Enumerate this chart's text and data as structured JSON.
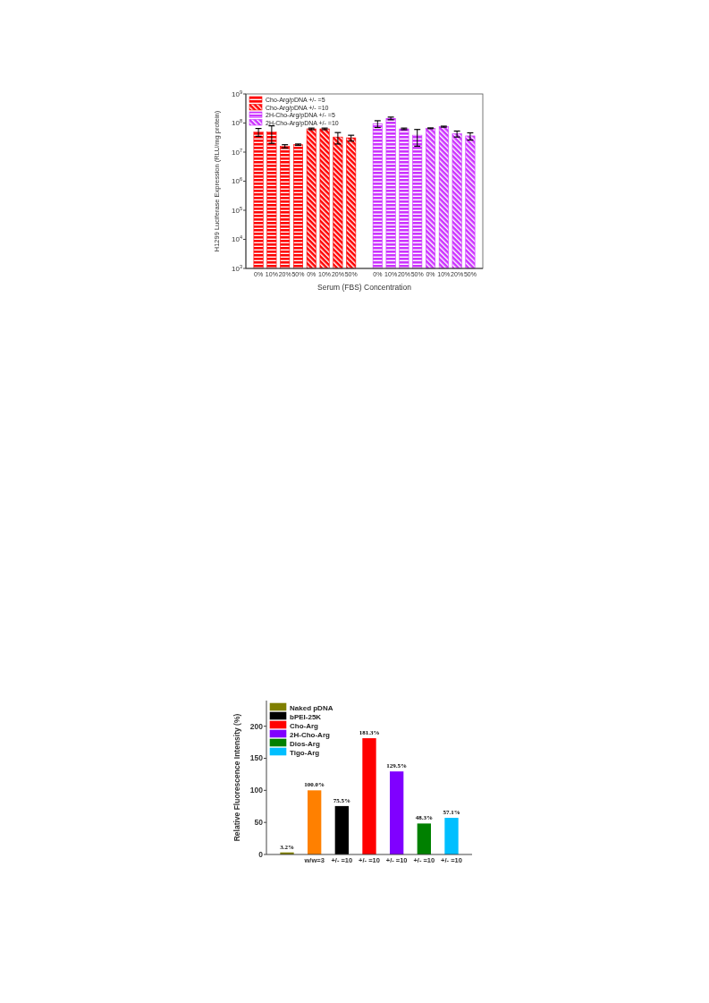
{
  "chart_data": [
    {
      "type": "bar",
      "xlabel": "Serum (FBS) Concentration",
      "ylabel": "H1299 Luciferase Expression (RLU/mg protein)",
      "log": true,
      "ylim": [
        1000,
        1000000000
      ],
      "yticks": [
        {
          "value": 1000,
          "label": "10$^{3}$"
        },
        {
          "value": 10000,
          "label": "10$^{4}$"
        },
        {
          "value": 100000,
          "label": "10$^{5}$"
        },
        {
          "value": 1000000,
          "label": "10$^{6}$"
        },
        {
          "value": 10000000,
          "label": "10$^{7}$"
        },
        {
          "value": 100000000,
          "label": "10$^{8}$"
        },
        {
          "value": 1000000000,
          "label": "10$^{9}$"
        }
      ],
      "grid": false,
      "legend": "top left",
      "categories": [
        "0%",
        "10%",
        "20%",
        "50%",
        "0%",
        "10%",
        "20%",
        "50%",
        null,
        "0%",
        "10%",
        "20%",
        "50%",
        "0%",
        "10%",
        "20%",
        "50%"
      ],
      "series": [
        {
          "name": "Cho-Arg/pDNA +/- =5",
          "color": "#ff0000",
          "values": [
            50000000,
            50000000,
            16000000,
            18000000,
            null,
            null,
            null,
            null,
            null,
            null,
            null,
            null,
            null,
            null,
            null,
            null,
            null
          ],
          "errors": [
            15000000,
            30000000,
            2000000,
            1000000,
            null,
            null,
            null,
            null,
            null,
            null,
            null,
            null,
            null,
            null,
            null,
            null,
            null
          ]
        },
        {
          "name": "Cho-Arg/pDNA +/- =10",
          "color": "#ff0000",
          "values": [
            null,
            null,
            null,
            null,
            63000000,
            63000000,
            33000000,
            31000000,
            null,
            null,
            null,
            null,
            null,
            null,
            null,
            null,
            null
          ],
          "errors": [
            null,
            null,
            null,
            null,
            4000000,
            4000000,
            14000000,
            7000000,
            null,
            null,
            null,
            null,
            null,
            null,
            null,
            null,
            null
          ]
        },
        {
          "name": "2H-Cho-Arg/pDNA +/- =5",
          "color": "#cc33ff",
          "values": [
            null,
            null,
            null,
            null,
            null,
            null,
            null,
            null,
            null,
            95000000,
            145000000,
            63000000,
            38000000,
            null,
            null,
            null,
            null
          ],
          "errors": [
            null,
            null,
            null,
            null,
            null,
            null,
            null,
            null,
            null,
            25000000,
            15000000,
            4000000,
            22000000,
            null,
            null,
            null,
            null
          ]
        },
        {
          "name": "2H-Cho-Arg/pDNA +/- =10",
          "color": "#cc33ff",
          "values": [
            null,
            null,
            null,
            null,
            null,
            null,
            null,
            null,
            null,
            null,
            null,
            null,
            null,
            66000000,
            75000000,
            43000000,
            36000000
          ],
          "errors": [
            null,
            null,
            null,
            null,
            null,
            null,
            null,
            null,
            null,
            null,
            null,
            null,
            null,
            2000000,
            3000000,
            10000000,
            10000000
          ]
        }
      ]
    },
    {
      "type": "bar",
      "ylabel": "Relative Fluorescence Intensity (%)",
      "ylim": [
        0,
        240
      ],
      "yticks": [
        0,
        50,
        100,
        150,
        200
      ],
      "grid": false,
      "legend": "top left",
      "categories": [
        null,
        "w/w=3",
        "+/- =10",
        "+/- =10",
        "+/- =10",
        "+/- =10",
        "+/- =10"
      ],
      "series": [
        {
          "name": "Naked pDNA",
          "color": "#808000",
          "values": [
            3.2,
            null,
            null,
            null,
            null,
            null,
            null
          ],
          "value_labels": [
            "3.2%",
            null,
            null,
            null,
            null,
            null,
            null
          ]
        },
        {
          "color": "#ff8000",
          "values": [
            null,
            100,
            null,
            null,
            null,
            null,
            null
          ],
          "value_labels": [
            null,
            "100.0%",
            null,
            null,
            null,
            null,
            null
          ]
        },
        {
          "name": "bPEI-25K",
          "color": "#000000",
          "values": [
            null,
            null,
            75.5,
            null,
            null,
            null,
            null
          ],
          "value_labels": [
            null,
            null,
            "75.5%",
            null,
            null,
            null,
            null
          ]
        },
        {
          "name": "Cho-Arg",
          "color": "#ff0000",
          "values": [
            null,
            null,
            null,
            181.3,
            null,
            null,
            null
          ],
          "value_labels": [
            null,
            null,
            null,
            "181.3%",
            null,
            null,
            null
          ]
        },
        {
          "name": "2H-Cho-Arg",
          "color": "#8000ff",
          "values": [
            null,
            null,
            null,
            null,
            129.5,
            null,
            null
          ],
          "value_labels": [
            null,
            null,
            null,
            null,
            "129.5%",
            null,
            null
          ]
        },
        {
          "name": "Dios-Arg",
          "color": "#008000",
          "values": [
            null,
            null,
            null,
            null,
            null,
            48.3,
            null
          ],
          "value_labels": [
            null,
            null,
            null,
            null,
            null,
            "48.3%",
            null
          ]
        },
        {
          "name": "Tigo-Arg",
          "color": "#00bfff",
          "values": [
            null,
            null,
            null,
            null,
            null,
            null,
            57.1
          ],
          "value_labels": [
            null,
            null,
            null,
            null,
            null,
            null,
            "57.1%"
          ]
        }
      ]
    }
  ]
}
